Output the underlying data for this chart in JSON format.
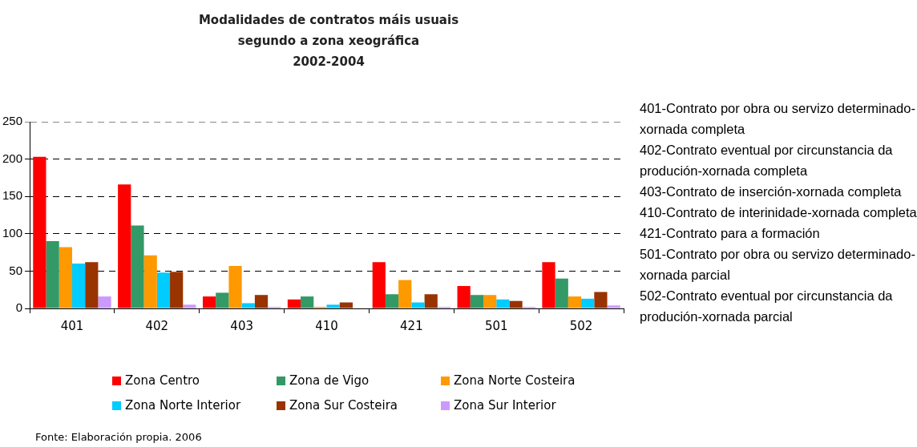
{
  "chart_data": {
    "type": "bar",
    "title": "Modalidades de contratos máis usuais segundo a zona xeográfica",
    "subtitle": "2002-2004",
    "categories": [
      "401",
      "402",
      "403",
      "410",
      "421",
      "501",
      "502"
    ],
    "series": [
      {
        "name": "Zona Centro",
        "color": "#ff0000",
        "values": [
          203,
          166,
          16,
          12,
          62,
          30,
          62
        ]
      },
      {
        "name": "Zona de Vigo",
        "color": "#339966",
        "values": [
          90,
          111,
          21,
          16,
          19,
          18,
          40
        ]
      },
      {
        "name": "Zona Norte Costeira",
        "color": "#ff9900",
        "values": [
          82,
          71,
          57,
          2,
          38,
          18,
          16
        ]
      },
      {
        "name": "Zona Norte Interior",
        "color": "#00ccff",
        "values": [
          60,
          48,
          7,
          5,
          8,
          12,
          13
        ]
      },
      {
        "name": "Zona Sur Costeira",
        "color": "#993300",
        "values": [
          62,
          49,
          18,
          8,
          19,
          10,
          22
        ]
      },
      {
        "name": "Zona Sur Interior",
        "color": "#cc99ff",
        "values": [
          16,
          5,
          2,
          0,
          2,
          2,
          4
        ]
      }
    ],
    "ylim": [
      0,
      250
    ],
    "yticks": [
      0,
      50,
      100,
      150,
      200,
      250
    ],
    "grid": "y",
    "legend": "bottom",
    "annotations": [
      "401-Contrato por obra ou servizo determinado-xornada completa",
      "402-Contrato eventual por circunstancia da produción-xornada completa",
      "403-Contrato de inserción-xornada completa",
      "410-Contrato de interinidade-xornada completa",
      "421-Contrato para a formación",
      "501-Contrato por obra ou servizo determinado-xornada parcial",
      "502-Contrato eventual por circunstancia da produción-xornada parcial",
      "Fonte: Elaboración propia. 2006"
    ]
  }
}
